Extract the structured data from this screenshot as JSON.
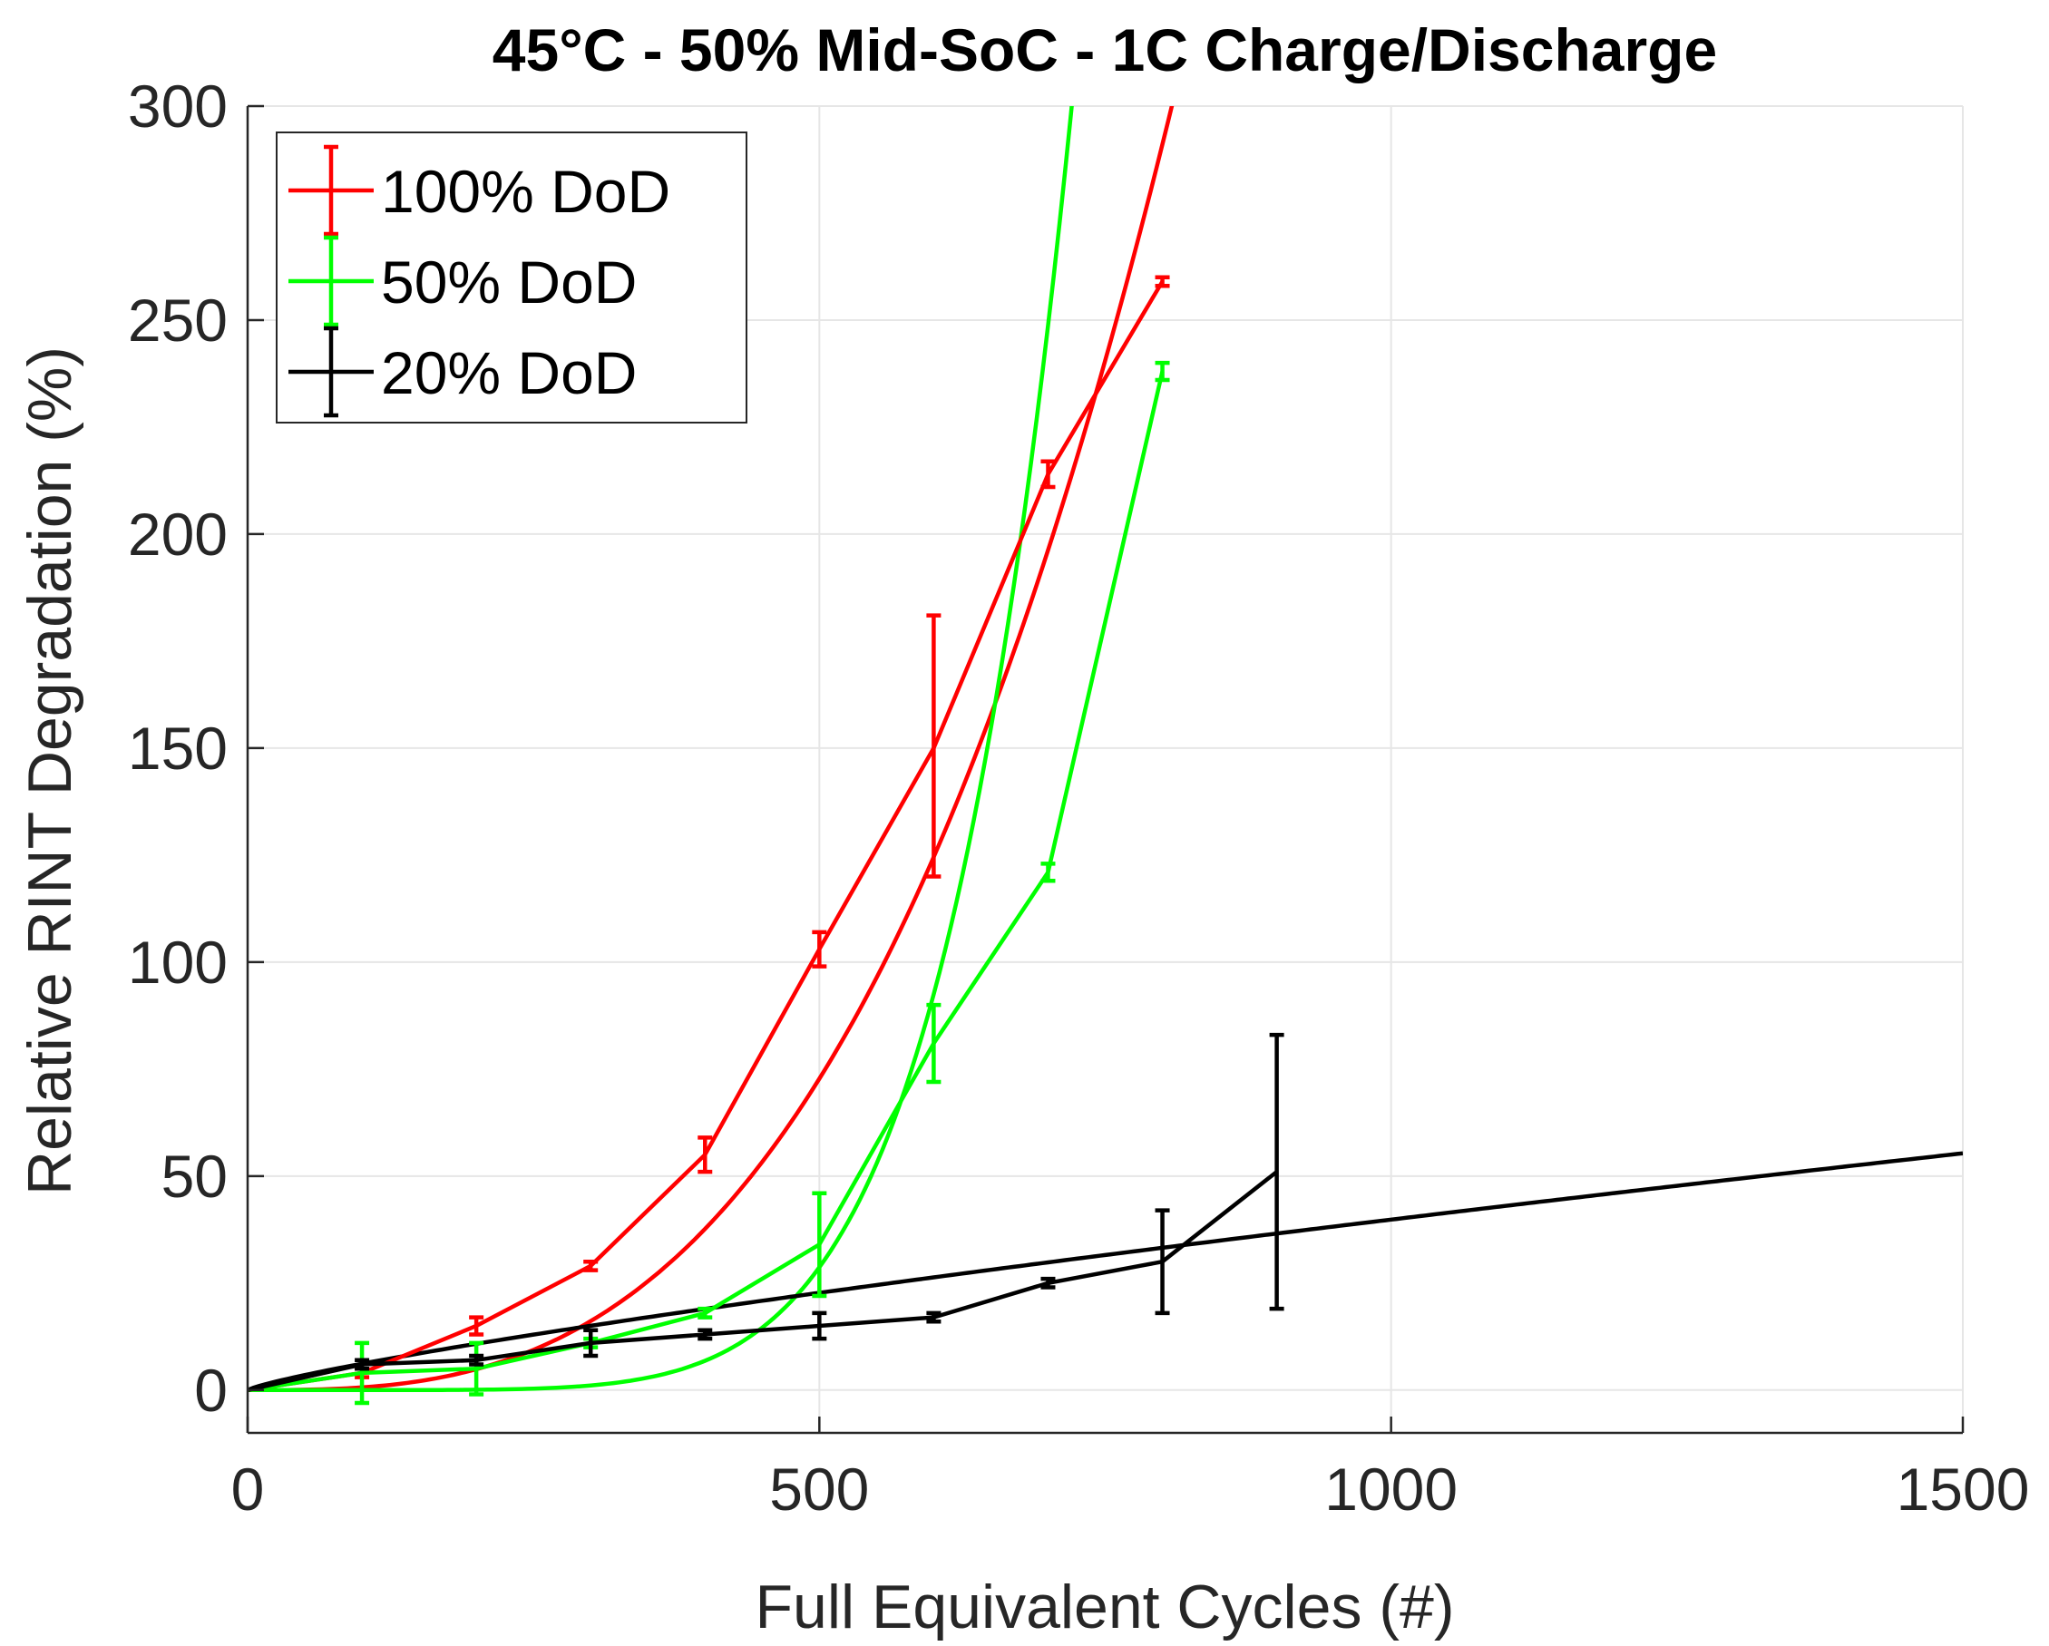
{
  "chart_data": {
    "type": "line",
    "title": "45°C - 50% Mid-SoC - 1C Charge/Discharge",
    "xlabel": "Full Equivalent Cycles (#)",
    "ylabel": "Relative RINT Degradation (%)",
    "xlim": [
      0,
      1500
    ],
    "ylim": [
      -10,
      300
    ],
    "xticks": [
      0,
      500,
      1000,
      1500
    ],
    "yticks": [
      0,
      50,
      100,
      150,
      200,
      250,
      300
    ],
    "xtick_labels": [
      "0",
      "500",
      "1000",
      "1500"
    ],
    "ytick_labels": [
      "0",
      "50",
      "100",
      "150",
      "200",
      "250",
      "300"
    ],
    "grid": true,
    "legend_position": "top-left",
    "series": [
      {
        "name": "100% DoD",
        "color": "#ff0000",
        "x": [
          0,
          100,
          200,
          300,
          400,
          500,
          600,
          700,
          800
        ],
        "y": [
          0,
          4,
          15,
          29,
          55,
          103,
          150,
          214,
          259
        ],
        "err_low": [
          0,
          1,
          2,
          1,
          4,
          4,
          30,
          3,
          1
        ],
        "err_high": [
          0,
          1,
          2,
          1,
          4,
          4,
          31,
          3,
          1
        ],
        "fit": {
          "type": "power",
          "a": 7.94e-07,
          "p": 2.95
        }
      },
      {
        "name": "50% DoD",
        "color": "#00ff00",
        "x": [
          0,
          100,
          200,
          300,
          400,
          500,
          600,
          700,
          800
        ],
        "y": [
          0,
          4,
          5,
          11,
          18,
          34,
          81,
          121,
          238
        ],
        "err_low": [
          0,
          7,
          6,
          1,
          1,
          12,
          9,
          2,
          2
        ],
        "err_high": [
          0,
          7,
          6,
          1,
          1,
          12,
          9,
          2,
          2
        ],
        "fit": {
          "type": "power",
          "a": 1.35e-16,
          "p": 6.42
        }
      },
      {
        "name": "20% DoD",
        "color": "#000000",
        "x": [
          0,
          100,
          200,
          300,
          400,
          500,
          600,
          700,
          800,
          900
        ],
        "y": [
          0,
          6,
          7,
          11,
          13,
          15,
          17,
          25,
          30,
          51
        ],
        "err_low": [
          0,
          1,
          1,
          3,
          1,
          3,
          1,
          1,
          12,
          32
        ],
        "err_high": [
          0,
          1,
          1,
          3,
          1,
          3,
          1,
          1,
          12,
          32
        ],
        "fit": {
          "type": "power",
          "a": 0.148,
          "p": 0.81
        }
      }
    ]
  }
}
